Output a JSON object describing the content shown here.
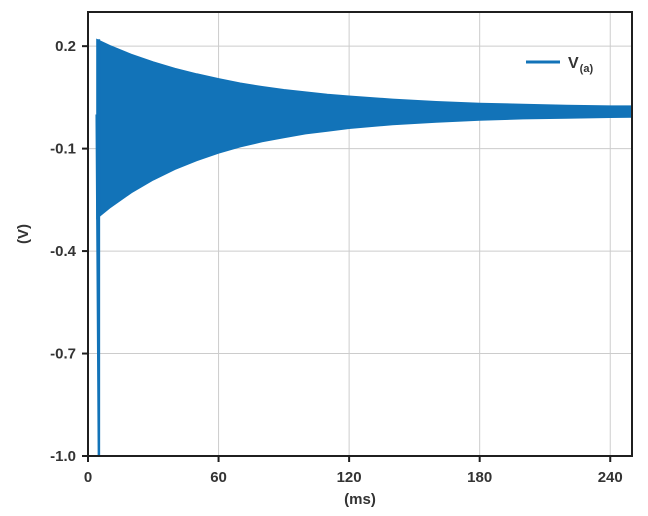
{
  "figure": {
    "background": "#ffffff"
  },
  "colors": {
    "accent": "#1273b8",
    "grid": "#cccccc",
    "border": "#1f1f1f",
    "text": "#333333"
  },
  "chart_data": {
    "type": "line",
    "title": "",
    "xlabel": "(ms)",
    "ylabel": "(V)",
    "xlim": [
      0,
      250
    ],
    "ylim": [
      -1.0,
      0.3
    ],
    "x_ticks": [
      0,
      60,
      120,
      180,
      240
    ],
    "x_tick_labels": [
      "0",
      "60",
      "120",
      "180",
      "240"
    ],
    "y_ticks": [
      0.2,
      -0.1,
      -0.4,
      -0.7,
      -1.0
    ],
    "y_tick_labels": [
      "0.2",
      "-0.1",
      "-0.4",
      "-0.7",
      "-1.0"
    ],
    "grid": true,
    "legend": {
      "position": "top-right",
      "label": "V",
      "subscript": "(a)"
    },
    "description": "Damped ringing of node voltage V(a): sharp negative spike to -1.0 V at t = 5 ms, then a dense oscillation whose envelope decays exponentially toward about 0.01 V by 250 ms",
    "spike": {
      "t_start": 4,
      "t": 5,
      "v_min": -1.0,
      "v_max": 0.22
    },
    "envelope": {
      "t": [
        4,
        5,
        10,
        20,
        30,
        40,
        50,
        60,
        70,
        80,
        90,
        100,
        110,
        120,
        140,
        160,
        180,
        200,
        220,
        240,
        250
      ],
      "upper": [
        0.22,
        0.217,
        0.202,
        0.176,
        0.154,
        0.135,
        0.119,
        0.105,
        0.092,
        0.082,
        0.073,
        0.066,
        0.059,
        0.054,
        0.045,
        0.038,
        0.033,
        0.03,
        0.027,
        0.025,
        0.025
      ],
      "lower": [
        -0.305,
        -0.3,
        -0.274,
        -0.229,
        -0.192,
        -0.161,
        -0.135,
        -0.113,
        -0.095,
        -0.08,
        -0.068,
        -0.057,
        -0.049,
        -0.041,
        -0.03,
        -0.023,
        -0.017,
        -0.013,
        -0.011,
        -0.009,
        -0.008
      ]
    }
  }
}
